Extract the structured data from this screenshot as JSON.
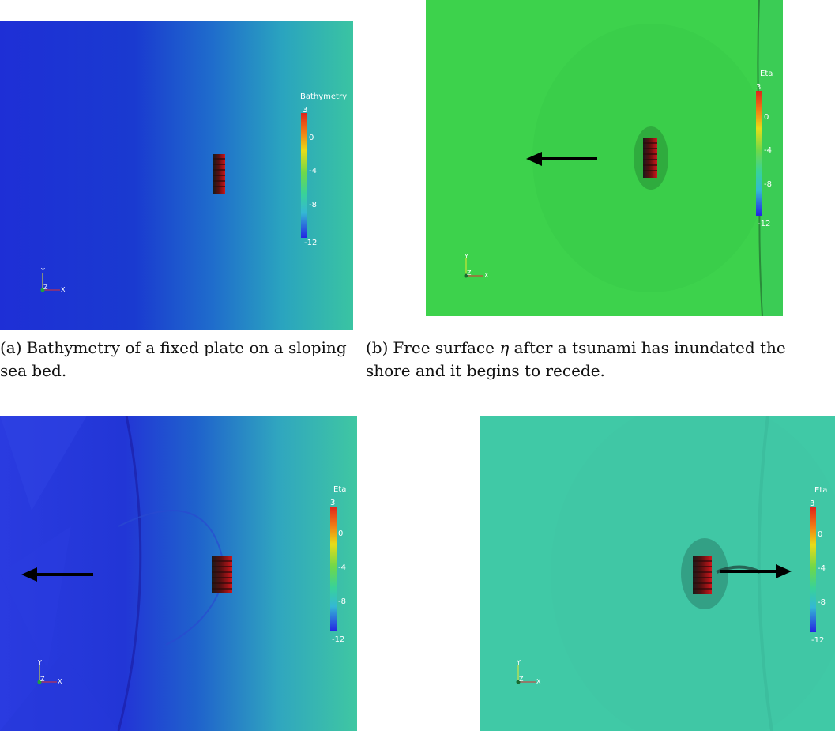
{
  "colors": {
    "deep_blue": "#1a27d8",
    "shallow_teal": "#40c0a0",
    "field_green": "#3cd34a",
    "plate_red": "#c0141a",
    "arrow": "#000000"
  },
  "panels": [
    {
      "id": "a",
      "colorbar": {
        "title": "Bathymetry",
        "ticks": [
          "3",
          "0",
          "-4",
          "-8",
          "-12"
        ]
      },
      "axes": {
        "y": "Y",
        "z": "Z",
        "x": "X"
      }
    },
    {
      "id": "b",
      "colorbar": {
        "title": "Eta",
        "ticks": [
          "3",
          "0",
          "-4",
          "-8",
          "-12"
        ]
      },
      "axes": {
        "y": "Y",
        "z": "Z",
        "x": "X"
      },
      "arrow": "left"
    },
    {
      "id": "c",
      "colorbar": {
        "title": "Eta",
        "ticks": [
          "3",
          "0",
          "-4",
          "-8",
          "-12"
        ]
      },
      "axes": {
        "y": "Y",
        "z": "Z",
        "x": "X"
      },
      "arrow": "left"
    },
    {
      "id": "d",
      "colorbar": {
        "title": "Eta",
        "ticks": [
          "3",
          "0",
          "-4",
          "-8",
          "-12"
        ]
      },
      "axes": {
        "y": "Y",
        "z": "Z",
        "x": "X"
      },
      "arrow": "right"
    }
  ],
  "captions": {
    "a": {
      "label": "(a)",
      "text": "Bathymetry of a fixed plate on a sloping sea bed."
    },
    "b": {
      "label": "(b)",
      "text_before": "Free surface",
      "symbol": "η",
      "text_after": "after a tsunami has inundated the shore and it begins to recede."
    }
  }
}
